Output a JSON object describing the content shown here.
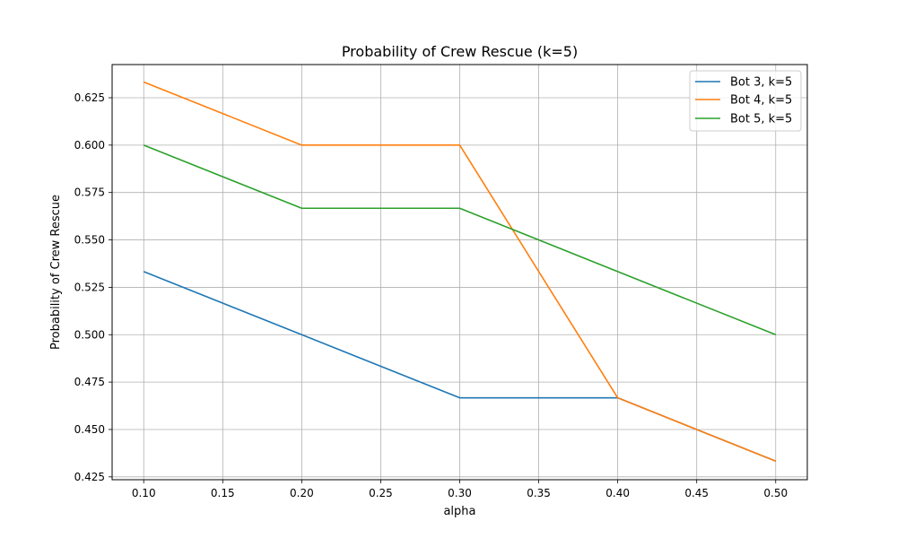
{
  "chart_data": {
    "type": "line",
    "title": "Probability of Crew Rescue (k=5)",
    "xlabel": "alpha",
    "ylabel": "Probability of Crew Rescue",
    "x": [
      0.1,
      0.2,
      0.3,
      0.4,
      0.5
    ],
    "xlim": [
      0.08,
      0.52
    ],
    "ylim": [
      0.4235,
      0.6425
    ],
    "xticks": [
      "0.10",
      "0.15",
      "0.20",
      "0.25",
      "0.30",
      "0.35",
      "0.40",
      "0.45",
      "0.50"
    ],
    "yticks": [
      "0.425",
      "0.450",
      "0.475",
      "0.500",
      "0.525",
      "0.550",
      "0.575",
      "0.600",
      "0.625"
    ],
    "grid": true,
    "legend_position": "top-right",
    "series": [
      {
        "name": "Bot 3, k=5",
        "color": "#1f77b4",
        "values": [
          0.5333,
          0.5,
          0.4667,
          0.4667,
          0.4333
        ]
      },
      {
        "name": "Bot 4, k=5",
        "color": "#ff7f0e",
        "values": [
          0.6333,
          0.6,
          0.6,
          0.4667,
          0.4333
        ]
      },
      {
        "name": "Bot 5, k=5",
        "color": "#2ca02c",
        "values": [
          0.6,
          0.5667,
          0.5667,
          0.5333,
          0.5
        ]
      }
    ]
  }
}
